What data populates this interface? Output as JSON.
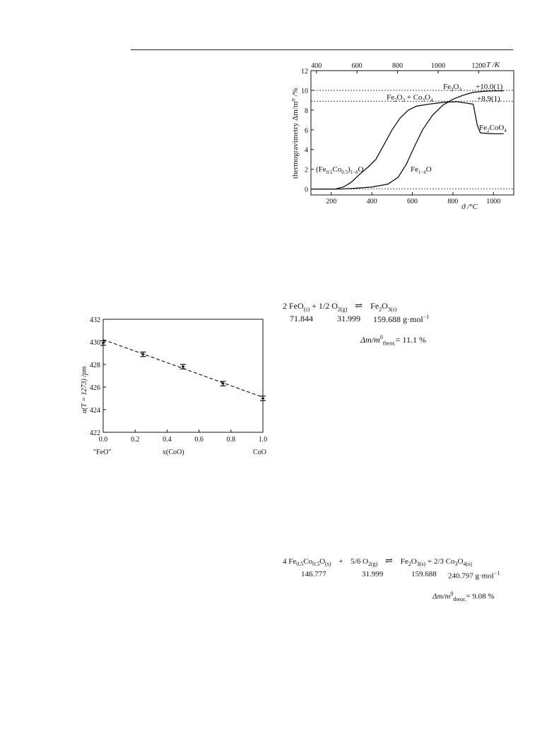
{
  "tga_chart": {
    "type": "line",
    "xlabel": "ϑ /°C",
    "x2label": "T /K",
    "ylabel": "thermogravimetry Δm/m⁰ /%",
    "xlim": [
      100,
      1100
    ],
    "ylim": [
      -0.6,
      12
    ],
    "xticks": [
      200,
      400,
      600,
      800,
      1000
    ],
    "x2ticks": [
      400,
      600,
      800,
      1000,
      1200
    ],
    "yticks": [
      0,
      2,
      4,
      6,
      8,
      10,
      12
    ],
    "ref_lines": [
      0,
      8.9,
      10.0
    ],
    "series": [
      {
        "points": [
          [
            100,
            0
          ],
          [
            220,
            0
          ],
          [
            260,
            0.2
          ],
          [
            300,
            0.7
          ],
          [
            340,
            1.5
          ],
          [
            380,
            2.2
          ],
          [
            420,
            3.0
          ],
          [
            460,
            4.5
          ],
          [
            500,
            6.0
          ],
          [
            540,
            7.2
          ],
          [
            580,
            8.0
          ],
          [
            620,
            8.4
          ],
          [
            680,
            8.6
          ],
          [
            760,
            8.8
          ],
          [
            820,
            8.85
          ],
          [
            900,
            8.6
          ],
          [
            920,
            6.5
          ],
          [
            935,
            5.7
          ],
          [
            960,
            5.65
          ],
          [
            1000,
            5.6
          ],
          [
            1050,
            5.6
          ]
        ]
      },
      {
        "points": [
          [
            100,
            0
          ],
          [
            250,
            0
          ],
          [
            300,
            0.05
          ],
          [
            400,
            0.2
          ],
          [
            480,
            0.5
          ],
          [
            530,
            1.2
          ],
          [
            570,
            2.5
          ],
          [
            610,
            4.3
          ],
          [
            650,
            6.0
          ],
          [
            700,
            7.5
          ],
          [
            750,
            8.5
          ],
          [
            800,
            9.1
          ],
          [
            850,
            9.5
          ],
          [
            900,
            9.8
          ],
          [
            950,
            9.9
          ],
          [
            1000,
            9.95
          ],
          [
            1050,
            9.95
          ]
        ]
      }
    ],
    "labels": {
      "fe2o3_main": "Fe",
      "fe2o3_sub1": "2",
      "fe2o3_o": "O",
      "fe2o3_sub2": "3",
      "val10": "+10.0(1)",
      "mix_fe": "Fe",
      "mix_sub1": "2",
      "mix_o1": "O",
      "mix_sub2": "3",
      "mix_plus": " + Co",
      "mix_sub3": "3",
      "mix_o2": "O",
      "mix_sub4": "4",
      "val89": "+8.9(1)",
      "fe2coo4_fe": "Fe",
      "fe2coo4_sub1": "2",
      "fe2coo4_coo": "CoO",
      "fe2coo4_sub2": "4",
      "left_a": "(Fe",
      "left_s1": "0.5",
      "left_b": "Co",
      "left_s2": "0.5",
      "left_c": ")",
      "left_s3": "1−δ",
      "left_d": "O",
      "right_a": "Fe",
      "right_s": "1−δ",
      "right_b": "O"
    }
  },
  "lattice_chart": {
    "type": "scatter",
    "xlabel": "x(CoO)",
    "ylabel": "a(T = 1273) /pm",
    "xlim": [
      0,
      1
    ],
    "ylim": [
      422,
      432
    ],
    "xticks": [
      0.0,
      0.2,
      0.4,
      0.6,
      0.8,
      1.0
    ],
    "xtick_labels": [
      "0.0",
      "0.2",
      "0.4",
      "0.6",
      "0.8",
      "1.0"
    ],
    "yticks": [
      422,
      424,
      426,
      428,
      430,
      432
    ],
    "end_labels": [
      "\"FeO\"",
      "CoO"
    ],
    "points": [
      {
        "x": 0.0,
        "y": 429.9,
        "err": 0.2
      },
      {
        "x": 0.25,
        "y": 428.9,
        "err": 0.2
      },
      {
        "x": 0.5,
        "y": 427.8,
        "err": 0.2
      },
      {
        "x": 0.75,
        "y": 426.3,
        "err": 0.2
      },
      {
        "x": 1.0,
        "y": 425.0,
        "err": 0.2
      }
    ],
    "fit_line": [
      [
        0.0,
        430.2
      ],
      [
        1.0,
        425.1
      ]
    ]
  },
  "equation1": {
    "lhs1": "2 FeO",
    "lhs1_sub": "(s)",
    "lhs2": " + 1/2 O",
    "lhs2_sub": "2(g)",
    "arrow": "⇌",
    "rhs": "Fe",
    "rhs_sub1": "2",
    "rhs_o": "O",
    "rhs_sub2": "3(s)",
    "m1": "71.844",
    "m2": "31.999",
    "m3": "159.688 g·mol",
    "m3_sup": "−1",
    "dm_a": "Δm/m",
    "dm_sup": "0",
    "dm_sub": "theor.",
    "dm_val": "= 11.1 %"
  },
  "equation2": {
    "lhs1": "4 Fe",
    "lhs1_s1": "0.5",
    "lhs1_co": "Co",
    "lhs1_s2": "0.5",
    "lhs1_o": "O",
    "lhs1_s3": "(s)",
    "plus": "+",
    "lhs2": "5/6 O",
    "lhs2_sub": "2(g)",
    "arrow": "⇌",
    "rhs1": "Fe",
    "rhs1_s1": "2",
    "rhs1_o": "O",
    "rhs1_s2": "3(s)",
    "rhs2": " + 2/3 Co",
    "rhs2_s1": "3",
    "rhs2_o": "O",
    "rhs2_s2": "4(s)",
    "m1": "146.777",
    "m2": "31.999",
    "m3": "159.688",
    "m4": "240.797 g·mol",
    "m4_sup": "−1",
    "dm_a": "Δm/m",
    "dm_sup": "0",
    "dm_sub": "theor.",
    "dm_val": "= 9.08 %"
  }
}
